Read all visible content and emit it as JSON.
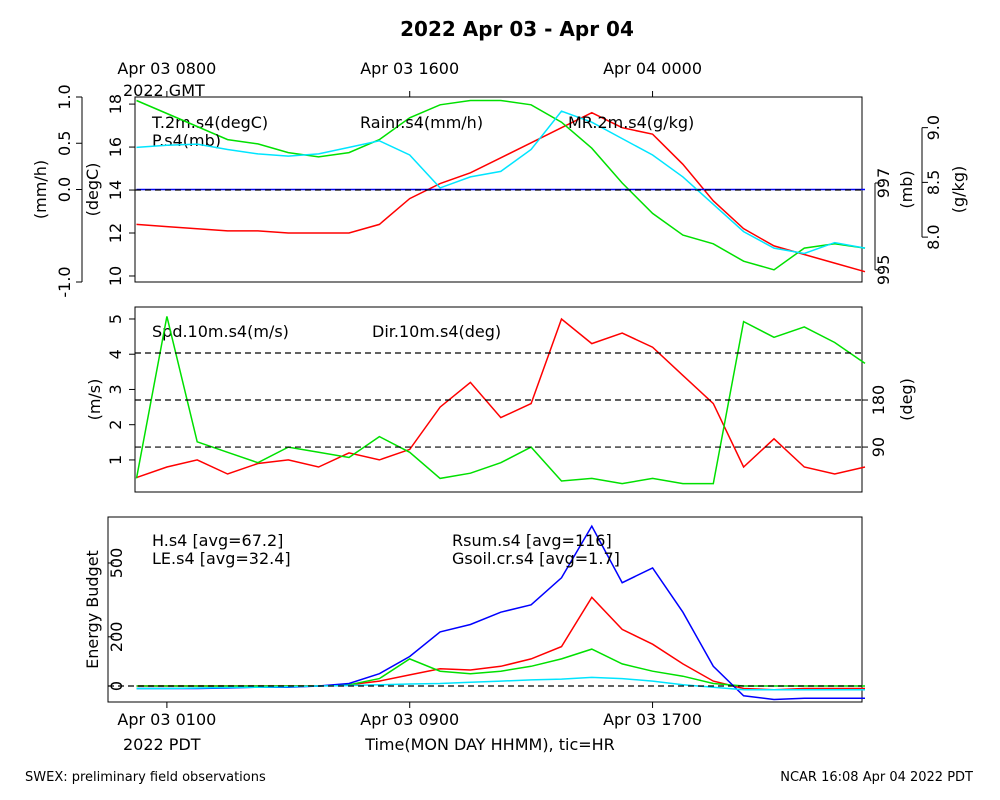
{
  "title": "2022 Apr 03 - Apr 04",
  "x_axis_label": "Time(MON DAY HHMM), tic=HR",
  "top_time_note": "2022 GMT",
  "bottom_time_note": "2022 PDT",
  "footer_left": "SWEX: preliminary field observations",
  "footer_right": "NCAR 16:08 Apr 04 2022 PDT",
  "chart_data": [
    {
      "type": "line",
      "x": [
        -1,
        0,
        1,
        2,
        3,
        4,
        5,
        6,
        7,
        8,
        9,
        10,
        11,
        12,
        13,
        14,
        15,
        16,
        17,
        18,
        19,
        20,
        21,
        22,
        23
      ],
      "xlim": [
        -1.05,
        22.9
      ],
      "x2ticks": [
        {
          "value": 0,
          "label": "Apr 03 0800"
        },
        {
          "value": 8,
          "label": "Apr 03 1600"
        },
        {
          "value": 16,
          "label": "Apr 04 0000"
        }
      ],
      "axes": [
        {
          "label": "(mm/h)",
          "lim": [
            -1.0,
            1.0
          ],
          "ticks": [
            {
              "value": -1,
              "label": "-1.0"
            },
            {
              "value": 0,
              "label": "0.0"
            },
            0.5,
            {
              "value": 1,
              "label": "1.0"
            }
          ]
        },
        {
          "label": "(degC)",
          "lim": [
            9.72,
            18.33
          ],
          "ticks": [
            10,
            12,
            14,
            16,
            18
          ]
        },
        {
          "label": "(mb)",
          "lim": [
            994.72,
            998.98
          ],
          "ticks": [
            995,
            997
          ]
        },
        {
          "label": "(g/kg)",
          "lim": [
            7.59,
            9.28
          ],
          "ticks": [
            {
              "value": 8,
              "label": "8.0"
            },
            8.5,
            {
              "value": 9,
              "label": "9.0"
            }
          ]
        }
      ],
      "reflines": [
        {
          "axis": 1,
          "values": [
            14
          ]
        }
      ],
      "series": [
        {
          "name": "T.2m.s4(degC)",
          "color": "#ff0000",
          "axis": 1,
          "values": [
            12.4,
            12.3,
            12.2,
            12.1,
            12.1,
            12.0,
            12.0,
            12.0,
            12.4,
            13.6,
            14.3,
            14.8,
            15.5,
            16.2,
            16.9,
            17.6,
            16.9,
            16.6,
            15.2,
            13.5,
            12.2,
            11.4,
            11.0,
            10.6,
            10.2
          ]
        },
        {
          "name": "P.s4(mb)",
          "color": "#00e000",
          "axis": 2,
          "values": [
            998.9,
            998.6,
            998.3,
            998.0,
            997.9,
            997.7,
            997.6,
            997.7,
            998.0,
            998.5,
            998.8,
            998.9,
            998.9,
            998.8,
            998.4,
            997.8,
            997.0,
            996.3,
            995.8,
            995.6,
            995.2,
            995.0,
            995.5,
            995.6,
            995.5
          ]
        },
        {
          "name": "Rainr.s4(mm/h)",
          "color": "#0000ff",
          "axis": 0,
          "values": [
            0,
            0,
            0,
            0,
            0,
            0,
            0,
            0,
            0,
            0,
            0,
            0,
            0,
            0,
            0,
            0,
            0,
            0,
            0,
            0,
            0,
            0,
            0,
            0,
            0
          ]
        },
        {
          "name": "MR.2m.s4(g/kg)",
          "color": "#00e5ff",
          "axis": 3,
          "values": [
            8.82,
            8.84,
            8.85,
            8.8,
            8.76,
            8.74,
            8.76,
            8.82,
            8.88,
            8.75,
            8.45,
            8.55,
            8.6,
            8.8,
            9.15,
            9.05,
            8.9,
            8.75,
            8.55,
            8.3,
            8.05,
            7.9,
            7.85,
            7.95,
            7.9
          ]
        }
      ]
    },
    {
      "type": "line",
      "x": [
        -1,
        0,
        1,
        2,
        3,
        4,
        5,
        6,
        7,
        8,
        9,
        10,
        11,
        12,
        13,
        14,
        15,
        16,
        17,
        18,
        19,
        20,
        21,
        22,
        23
      ],
      "xlim": [
        -1.05,
        22.9
      ],
      "axes": [
        {
          "label": "(m/s)",
          "lim": [
            0.09,
            5.34
          ],
          "ticks": [
            1,
            2,
            3,
            4,
            5
          ]
        },
        {
          "label": "(deg)",
          "lim": [
            4,
            358
          ],
          "ticks": [
            90,
            180
          ]
        }
      ],
      "reflines": [
        {
          "axis": 1,
          "values": [
            90,
            180,
            270
          ]
        }
      ],
      "series": [
        {
          "name": "Spd.10m.s4(m/s)",
          "color": "#ff0000",
          "axis": 0,
          "values": [
            0.5,
            0.8,
            1.0,
            0.6,
            0.9,
            1.0,
            0.8,
            1.2,
            1.0,
            1.3,
            2.5,
            3.2,
            2.2,
            2.6,
            5.0,
            4.3,
            4.6,
            4.2,
            3.4,
            2.6,
            0.8,
            1.6,
            0.8,
            0.6,
            0.8
          ]
        },
        {
          "name": "Dir.10m.s4(deg)",
          "color": "#00e000",
          "axis": 1,
          "values": [
            30,
            340,
            100,
            80,
            60,
            90,
            80,
            70,
            110,
            80,
            30,
            40,
            60,
            90,
            25,
            30,
            20,
            30,
            20,
            20,
            330,
            300,
            320,
            290,
            250
          ]
        }
      ]
    },
    {
      "type": "line",
      "x": [
        -1,
        0,
        1,
        2,
        3,
        4,
        5,
        6,
        7,
        8,
        9,
        10,
        11,
        12,
        13,
        14,
        15,
        16,
        17,
        18,
        19,
        20,
        21,
        22,
        23
      ],
      "xlim": [
        -1.94,
        22.9
      ],
      "xticks": [
        {
          "value": 0,
          "label": "Apr 03 0100"
        },
        {
          "value": 8,
          "label": "Apr 03 0900"
        },
        {
          "value": 16,
          "label": "Apr 03 1700"
        }
      ],
      "axes": [
        {
          "label": "Energy Budget",
          "lim": [
            -65,
            687
          ],
          "ticks": [
            0,
            200,
            500
          ]
        }
      ],
      "reflines": [
        {
          "axis": 0,
          "values": [
            0
          ]
        }
      ],
      "series": [
        {
          "name": "H.s4 [avg=67.2]",
          "color": "#ff0000",
          "axis": 0,
          "values": [
            0,
            0,
            0,
            0,
            0,
            0,
            0,
            5,
            20,
            45,
            70,
            65,
            80,
            110,
            160,
            360,
            230,
            170,
            90,
            20,
            -10,
            -15,
            -10,
            -10,
            -10
          ]
        },
        {
          "name": "LE.s4 [avg=32.4]",
          "color": "#00e000",
          "axis": 0,
          "values": [
            0,
            0,
            0,
            0,
            0,
            0,
            0,
            5,
            30,
            110,
            60,
            50,
            60,
            80,
            110,
            150,
            90,
            60,
            40,
            10,
            0,
            0,
            0,
            0,
            0
          ]
        },
        {
          "name": "Rsum.s4 [avg=116]",
          "color": "#0000ff",
          "axis": 0,
          "values": [
            -10,
            -10,
            -10,
            -8,
            -5,
            -5,
            0,
            10,
            50,
            120,
            220,
            250,
            300,
            330,
            440,
            650,
            420,
            480,
            300,
            80,
            -40,
            -55,
            -50,
            -50,
            -50
          ]
        },
        {
          "name": "Gsoil.cr.s4 [avg=1.7]",
          "color": "#00e5ff",
          "axis": 0,
          "values": [
            -10,
            -10,
            -8,
            -6,
            -5,
            -3,
            0,
            2,
            5,
            8,
            10,
            15,
            20,
            25,
            28,
            35,
            30,
            20,
            5,
            -5,
            -15,
            -15,
            -15,
            -15,
            -15
          ]
        }
      ]
    }
  ]
}
